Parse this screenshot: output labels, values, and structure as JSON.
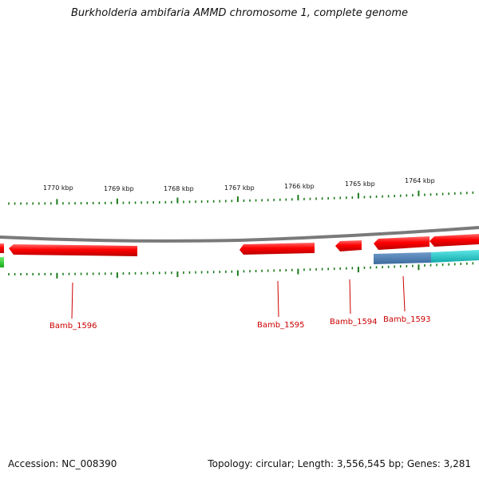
{
  "title": "Burkholderia ambifaria AMMD chromosome 1, complete genome",
  "footer": {
    "accession_label": "Accession: NC_008390",
    "stats_label": "Topology: circular; Length: 3,556,545 bp; Genes: 3,281"
  },
  "colors": {
    "background": "#ffffff",
    "backbone": "#7a7a7a",
    "tick": "#1a7a1a",
    "gene_forward": "#ff0000",
    "gene_label": "#cc0000",
    "rna_green": "#22cc22",
    "feature_blue": "#4a7fb5",
    "feature_cyan": "#22cccc"
  },
  "scale_labels": [
    "1770 kbp",
    "1769 kbp",
    "1768 kbp",
    "1767 kbp",
    "1766 kbp",
    "1765 kbp",
    "1764 kbp"
  ],
  "gene_labels": [
    "Bamb_1596",
    "Bamb_1595",
    "Bamb_1594",
    "Bamb_1593"
  ]
}
